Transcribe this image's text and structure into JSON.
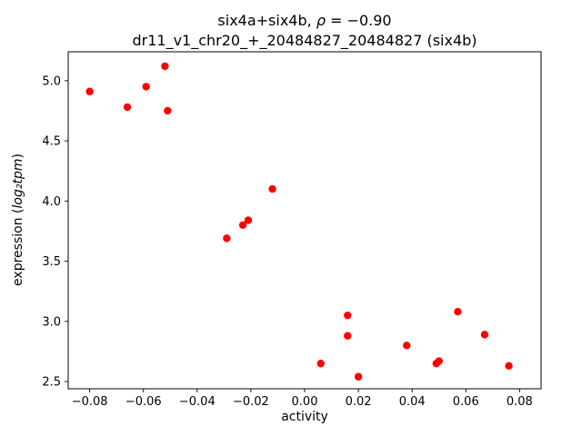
{
  "figure": {
    "title_prefix": "six4a+six4b, ",
    "title_rho": "ρ",
    "title_suffix": " = −0.90",
    "subtitle": "dr11_v1_chr20_+_20484827_20484827 (six4b)",
    "xlabel": "activity",
    "ylabel_prefix": "expression (",
    "ylabel_math": "log₂tpm",
    "ylabel_suffix": ")"
  },
  "chart_data": {
    "type": "scatter",
    "title": "six4a+six4b, ρ = −0.90",
    "subtitle": "dr11_v1_chr20_+_20484827_20484827 (six4b)",
    "xlabel": "activity",
    "ylabel": "expression (log2 tpm)",
    "marker_color": "#ff0000",
    "background_color": "#ffffff",
    "grid": false,
    "legend": "none",
    "xlim": [
      -0.088,
      0.088
    ],
    "ylim": [
      2.44,
      5.24
    ],
    "xticks": [
      -0.08,
      -0.06,
      -0.04,
      -0.02,
      0.0,
      0.02,
      0.04,
      0.06,
      0.08
    ],
    "xtick_labels": [
      "−0.08",
      "−0.06",
      "−0.04",
      "−0.02",
      "0.00",
      "0.02",
      "0.04",
      "0.06",
      "0.08"
    ],
    "yticks": [
      2.5,
      3.0,
      3.5,
      4.0,
      4.5,
      5.0
    ],
    "ytick_labels": [
      "2.5",
      "3.0",
      "3.5",
      "4.0",
      "4.5",
      "5.0"
    ],
    "points": [
      [
        -0.08,
        4.91
      ],
      [
        -0.066,
        4.78
      ],
      [
        -0.059,
        4.95
      ],
      [
        -0.052,
        5.12
      ],
      [
        -0.051,
        4.75
      ],
      [
        -0.029,
        3.69
      ],
      [
        -0.023,
        3.8
      ],
      [
        -0.021,
        3.84
      ],
      [
        -0.012,
        4.1
      ],
      [
        0.006,
        2.65
      ],
      [
        0.016,
        3.05
      ],
      [
        0.016,
        2.88
      ],
      [
        0.02,
        2.54
      ],
      [
        0.038,
        2.8
      ],
      [
        0.049,
        2.65
      ],
      [
        0.05,
        2.67
      ],
      [
        0.057,
        3.08
      ],
      [
        0.067,
        2.89
      ],
      [
        0.076,
        2.63
      ]
    ]
  }
}
